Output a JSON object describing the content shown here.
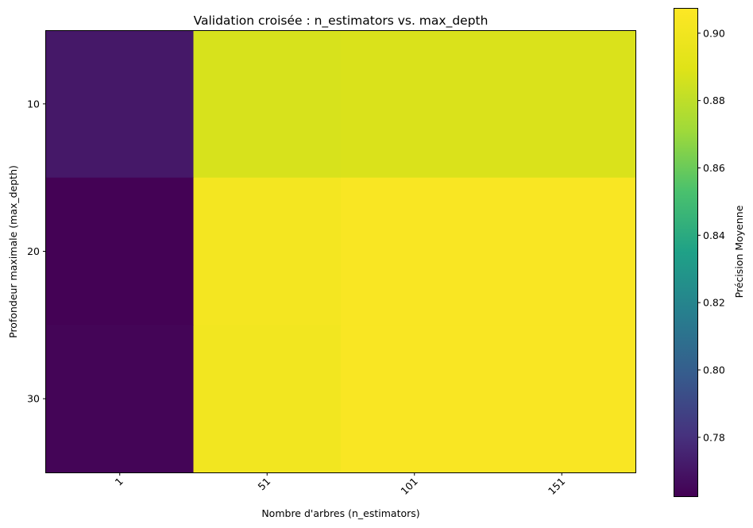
{
  "chart_data": {
    "type": "heatmap",
    "title": "Validation croisée : n_estimators vs. max_depth",
    "xlabel": "Nombre d'arbres (n_estimators)",
    "ylabel": "Profondeur maximale (max_depth)",
    "x_categories": [
      "1",
      "51",
      "101",
      "151"
    ],
    "y_categories": [
      "10",
      "20",
      "30"
    ],
    "values": [
      [
        0.771,
        0.887,
        0.888,
        0.888
      ],
      [
        0.763,
        0.902,
        0.905,
        0.905
      ],
      [
        0.764,
        0.901,
        0.905,
        0.905
      ]
    ],
    "colormap": "viridis",
    "colorbar": {
      "label": "Précision Moyenne",
      "range": [
        0.7625,
        0.9075
      ],
      "ticks": [
        "0.78",
        "0.80",
        "0.82",
        "0.84",
        "0.86",
        "0.88",
        "0.90"
      ]
    },
    "grid": false,
    "x_tick_rotation": 45
  }
}
